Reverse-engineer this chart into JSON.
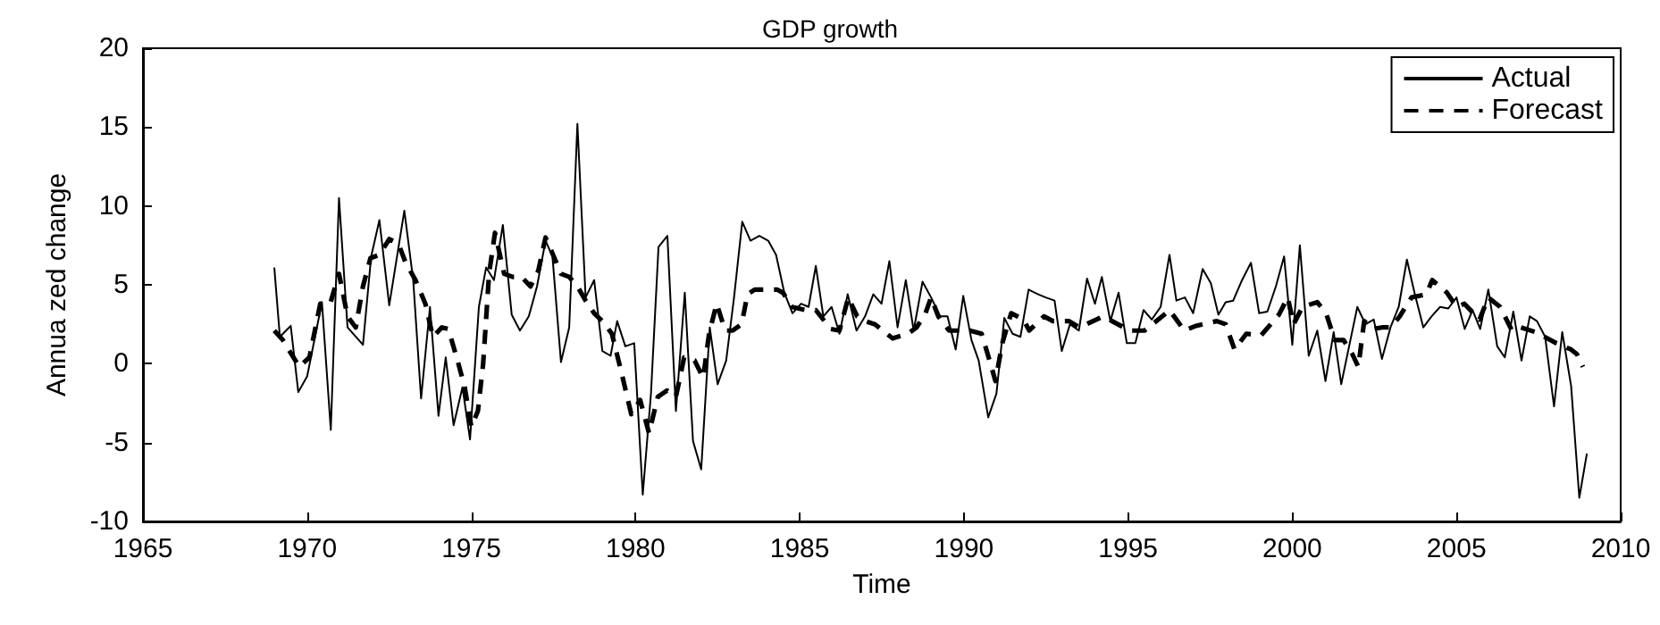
{
  "chart_data": {
    "type": "line",
    "title": "GDP growth",
    "xlabel": "Time",
    "ylabel": "Annua zed change",
    "xlim": [
      1965,
      2010
    ],
    "xticks": [
      1965,
      1970,
      1975,
      1980,
      1985,
      1990,
      1995,
      2000,
      2005,
      2010
    ],
    "ylim": [
      -10,
      20
    ],
    "yticks": [
      -10,
      -5,
      0,
      5,
      10,
      15,
      20
    ],
    "grid": false,
    "legend": "top right",
    "marker": "none",
    "series": [
      {
        "name": "Actual",
        "color": "#000000",
        "line_style": "solid",
        "x": [
          1969.0,
          1969.17,
          1969.5,
          1969.73,
          1970.0,
          1970.45,
          1970.72,
          1970.97,
          1971.23,
          1971.7,
          1971.95,
          1972.2,
          1972.5,
          1972.96,
          1973.23,
          1973.47,
          1973.74,
          1974.0,
          1974.22,
          1974.46,
          1974.73,
          1974.96,
          1975.23,
          1975.45,
          1975.69,
          1975.96,
          1976.23,
          1976.48,
          1976.75,
          1977.0,
          1977.26,
          1977.47,
          1977.73,
          1977.98,
          1978.23,
          1978.48,
          1978.74,
          1978.99,
          1979.24,
          1979.44,
          1979.69,
          1979.96,
          1980.22,
          1980.47,
          1980.7,
          1980.97,
          1981.23,
          1981.5,
          1981.75,
          1982.0,
          1982.26,
          1982.5,
          1982.76,
          1983.0,
          1983.25,
          1983.5,
          1983.77,
          1984.04,
          1984.28,
          1984.53,
          1984.78,
          1985.04,
          1985.27,
          1985.49,
          1985.72,
          1985.97,
          1986.21,
          1986.46,
          1986.73,
          1986.99,
          1987.24,
          1987.49,
          1987.73,
          1987.98,
          1988.23,
          1988.47,
          1988.74,
          1989.0,
          1989.28,
          1989.5,
          1989.75,
          1989.98,
          1990.23,
          1990.45,
          1990.74,
          1990.99,
          1991.23,
          1991.48,
          1991.72,
          1991.97,
          1992.26,
          1992.49,
          1992.76,
          1992.98,
          1993.23,
          1993.5,
          1993.75,
          1993.99,
          1994.2,
          1994.46,
          1994.71,
          1994.96,
          1995.22,
          1995.47,
          1995.72,
          1995.99,
          1996.26,
          1996.47,
          1996.73,
          1996.98,
          1997.27,
          1997.52,
          1997.75,
          1997.97,
          1998.2,
          1998.47,
          1998.74,
          1998.99,
          1999.24,
          1999.5,
          1999.75,
          2000.0,
          2000.23,
          2000.5,
          2000.76,
          2001.01,
          2001.26,
          2001.49,
          2001.74,
          2001.98,
          2002.23,
          2002.48,
          2002.73,
          2002.99,
          2003.24,
          2003.49,
          2003.72,
          2003.99,
          2004.24,
          2004.5,
          2004.75,
          2005.0,
          2005.25,
          2005.49,
          2005.72,
          2005.97,
          2006.24,
          2006.47,
          2006.73,
          2006.98,
          2007.23,
          2007.45,
          2007.7,
          2007.97,
          2008.22,
          2008.49,
          2008.74,
          2008.97
        ],
        "values": [
          6.1,
          1.7,
          2.4,
          -1.8,
          -0.8,
          3.9,
          -4.2,
          10.5,
          2.3,
          1.2,
          6.8,
          9.1,
          3.7,
          9.7,
          5.3,
          -2.2,
          3.6,
          -3.3,
          0.4,
          -3.9,
          -1.5,
          -4.8,
          3.6,
          6.1,
          5.3,
          8.8,
          3.1,
          2.1,
          3.0,
          4.9,
          7.8,
          6.8,
          0.1,
          2.3,
          15.2,
          4.2,
          5.3,
          0.8,
          0.5,
          2.7,
          1.1,
          1.3,
          -8.3,
          -1.9,
          7.4,
          8.1,
          -3.0,
          4.5,
          -4.9,
          -6.7,
          2.3,
          -1.3,
          0.2,
          4.2,
          9.0,
          7.8,
          8.1,
          7.8,
          6.9,
          4.5,
          3.2,
          3.8,
          3.6,
          6.2,
          3.0,
          3.6,
          1.9,
          4.4,
          2.1,
          3.0,
          4.4,
          3.8,
          6.5,
          2.3,
          5.3,
          2.1,
          5.2,
          4.2,
          3.0,
          3.0,
          0.9,
          4.3,
          1.5,
          0.2,
          -3.4,
          -1.9,
          2.9,
          1.9,
          1.7,
          4.7,
          4.4,
          4.2,
          4.0,
          0.8,
          2.5,
          2.1,
          5.4,
          3.8,
          5.5,
          2.7,
          4.5,
          1.3,
          1.3,
          3.4,
          2.8,
          3.6,
          6.9,
          4.0,
          4.2,
          3.2,
          6.0,
          5.1,
          3.1,
          3.9,
          4.0,
          5.3,
          6.4,
          3.2,
          3.3,
          4.9,
          6.8,
          1.2,
          7.5,
          0.5,
          2.1,
          -1.1,
          2.0,
          -1.3,
          1.2,
          3.6,
          2.5,
          2.8,
          0.3,
          2.3,
          3.6,
          6.6,
          4.5,
          2.3,
          3.0,
          3.6,
          3.5,
          4.2,
          2.2,
          3.4,
          2.2,
          4.7,
          1.1,
          0.4,
          3.3,
          0.2,
          3.0,
          2.7,
          1.7,
          -2.7,
          2.0,
          -1.4,
          -8.5,
          -5.7
        ]
      },
      {
        "name": "Forecast",
        "color": "#000000",
        "line_style": "dashed",
        "x": [
          1969.0,
          1969.26,
          1969.76,
          1970.07,
          1970.4,
          1970.7,
          1970.97,
          1971.23,
          1971.48,
          1971.7,
          1971.93,
          1972.2,
          1972.5,
          1972.78,
          1973.0,
          1973.3,
          1973.6,
          1973.83,
          1974.1,
          1974.3,
          1974.58,
          1974.8,
          1975.0,
          1975.2,
          1975.36,
          1975.54,
          1975.72,
          1976.0,
          1976.26,
          1976.53,
          1976.8,
          1977.04,
          1977.26,
          1977.47,
          1977.73,
          1977.98,
          1978.23,
          1978.48,
          1978.74,
          1978.99,
          1979.28,
          1979.6,
          1979.87,
          1980.14,
          1980.41,
          1980.68,
          1980.96,
          1981.23,
          1981.48,
          1981.8,
          1982.06,
          1982.24,
          1982.47,
          1982.73,
          1982.96,
          1983.23,
          1983.41,
          1983.63,
          1984.31,
          1984.49,
          1984.77,
          1985.18,
          1985.49,
          1985.94,
          1986.21,
          1986.48,
          1986.75,
          1986.99,
          1987.29,
          1987.83,
          1988.29,
          1988.56,
          1988.83,
          1989.0,
          1989.22,
          1989.55,
          1989.91,
          1990.18,
          1990.54,
          1990.81,
          1990.96,
          1991.17,
          1991.44,
          1991.81,
          1991.99,
          1992.44,
          1992.71,
          1993.2,
          1993.52,
          1994.24,
          1994.51,
          1995.05,
          1995.5,
          1996.04,
          1996.26,
          1996.71,
          1997.07,
          1997.7,
          1997.97,
          1998.24,
          1998.6,
          1999.05,
          1999.59,
          1999.86,
          2000.04,
          2000.31,
          2000.76,
          2001.03,
          2001.29,
          2001.56,
          2001.83,
          2002.01,
          2002.19,
          2002.46,
          2002.73,
          2003.0,
          2003.27,
          2003.63,
          2004.08,
          2004.26,
          2004.71,
          2005.0,
          2005.24,
          2005.7,
          2005.97,
          2006.33,
          2006.69,
          2006.96,
          2007.41,
          2007.68,
          2008.04,
          2008.49,
          2008.67,
          2008.85
        ],
        "values": [
          2.1,
          1.5,
          -0.2,
          0.4,
          3.8,
          3.8,
          5.7,
          3.0,
          2.3,
          4.9,
          6.7,
          6.9,
          7.9,
          7.6,
          6.4,
          5.3,
          3.8,
          1.7,
          2.3,
          2.2,
          0.2,
          -1.5,
          -4.0,
          -3.0,
          0,
          5.7,
          8.3,
          5.7,
          5.5,
          5.5,
          4.9,
          5.9,
          8.0,
          7.0,
          5.7,
          5.5,
          4.9,
          4.0,
          3.2,
          2.7,
          1.9,
          -0.8,
          -3.2,
          -2.3,
          -4.4,
          -2.1,
          -1.7,
          -2.1,
          0.4,
          0.2,
          -0.9,
          1.9,
          3.8,
          2.1,
          2.1,
          2.5,
          4.4,
          4.7,
          4.7,
          4.5,
          3.6,
          3.4,
          3.4,
          2.2,
          2.1,
          4.2,
          3.0,
          2.7,
          2.5,
          1.6,
          1.9,
          2.3,
          3.2,
          4.2,
          3.0,
          2.1,
          2.1,
          2.1,
          1.9,
          0,
          -1.1,
          1.3,
          3.2,
          2.8,
          2.1,
          3.0,
          2.7,
          2.7,
          2.3,
          3.0,
          2.7,
          2.1,
          2.1,
          3.0,
          3.4,
          2.1,
          2.4,
          2.7,
          2.5,
          0.9,
          1.9,
          1.8,
          3.1,
          4.2,
          2.5,
          3.6,
          3.9,
          3.2,
          1.5,
          1.5,
          0.6,
          -0.2,
          2.7,
          2.2,
          2.3,
          2.3,
          3.0,
          4.2,
          4.4,
          5.3,
          4.5,
          3.6,
          3.8,
          2.8,
          4.2,
          3.6,
          2.1,
          2.3,
          2.0,
          1.7,
          1.3,
          0.9,
          0.6,
          -0.2
        ]
      }
    ]
  }
}
